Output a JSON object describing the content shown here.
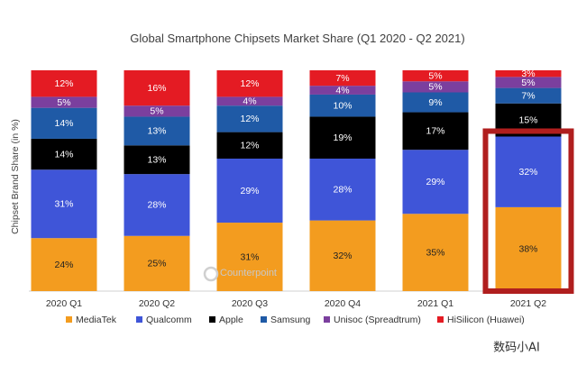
{
  "chart_data": {
    "type": "bar",
    "stacked": true,
    "title": "Global Smartphone Chipsets Market Share (Q1 2020 - Q2 2021)",
    "ylabel": "Chipset Brand Share (in %)",
    "xlabel": "",
    "ylim": [
      0,
      100
    ],
    "grid": false,
    "legend_position": "bottom",
    "categories": [
      "2020 Q1",
      "2020 Q2",
      "2020 Q3",
      "2020 Q4",
      "2021 Q1",
      "2021 Q2"
    ],
    "series": [
      {
        "name": "MediaTek",
        "color": "#F39C1F",
        "values": [
          24,
          25,
          31,
          32,
          35,
          38
        ],
        "labels": [
          "24%",
          "25%",
          "31%",
          "32%",
          "35%",
          "38%"
        ],
        "label_color": "#222222"
      },
      {
        "name": "Qualcomm",
        "color": "#3F55D8",
        "values": [
          31,
          28,
          29,
          28,
          29,
          32
        ],
        "labels": [
          "31%",
          "28%",
          "29%",
          "28%",
          "29%",
          "32%"
        ],
        "label_color": "#ffffff"
      },
      {
        "name": "Apple",
        "color": "#000000",
        "values": [
          14,
          13,
          12,
          19,
          17,
          15
        ],
        "labels": [
          "14%",
          "13%",
          "12%",
          "19%",
          "17%",
          "15%"
        ],
        "label_color": "#ffffff"
      },
      {
        "name": "Samsung",
        "color": "#1F5AA6",
        "values": [
          14,
          13,
          12,
          10,
          9,
          7
        ],
        "labels": [
          "14%",
          "13%",
          "12%",
          "10%",
          "9%",
          "7%"
        ],
        "label_color": "#ffffff"
      },
      {
        "name": "Unisoc (Spreadtrum)",
        "color": "#7B3F9E",
        "values": [
          5,
          5,
          4,
          4,
          5,
          5
        ],
        "labels": [
          "5%",
          "5%",
          "4%",
          "4%",
          "5%",
          "5%"
        ],
        "label_color": "#ffffff"
      },
      {
        "name": "HiSilicon (Huawei)",
        "color": "#E41B23",
        "values": [
          12,
          16,
          12,
          7,
          5,
          3
        ],
        "labels": [
          "12%",
          "16%",
          "12%",
          "7%",
          "5%",
          "3%"
        ],
        "label_color": "#ffffff"
      }
    ],
    "annotations": [
      {
        "type": "highlight-box",
        "target_category": "2021 Q2",
        "target_series": [
          "MediaTek",
          "Qualcomm"
        ],
        "color": "#B01E1E"
      }
    ],
    "watermark": "Counterpoint"
  },
  "corner_watermark": "数码小AI"
}
